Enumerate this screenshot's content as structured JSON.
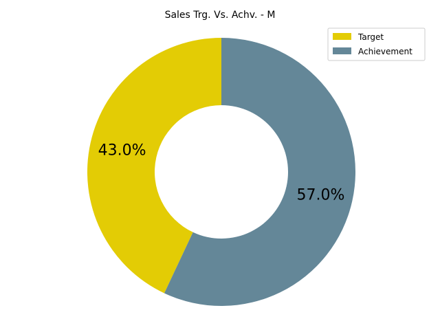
{
  "chart_data": {
    "type": "pie",
    "donut": true,
    "title": "Sales Trg. Vs. Achv. - M",
    "start_angle_deg": 90,
    "direction": "clockwise",
    "legend_position": "top-right",
    "slices": [
      {
        "label": "Target",
        "value": 43.0,
        "display": "43.0%",
        "color": "#e3cc05"
      },
      {
        "label": "Achievement",
        "value": 57.0,
        "display": "57.0%",
        "color": "#648798"
      }
    ]
  }
}
